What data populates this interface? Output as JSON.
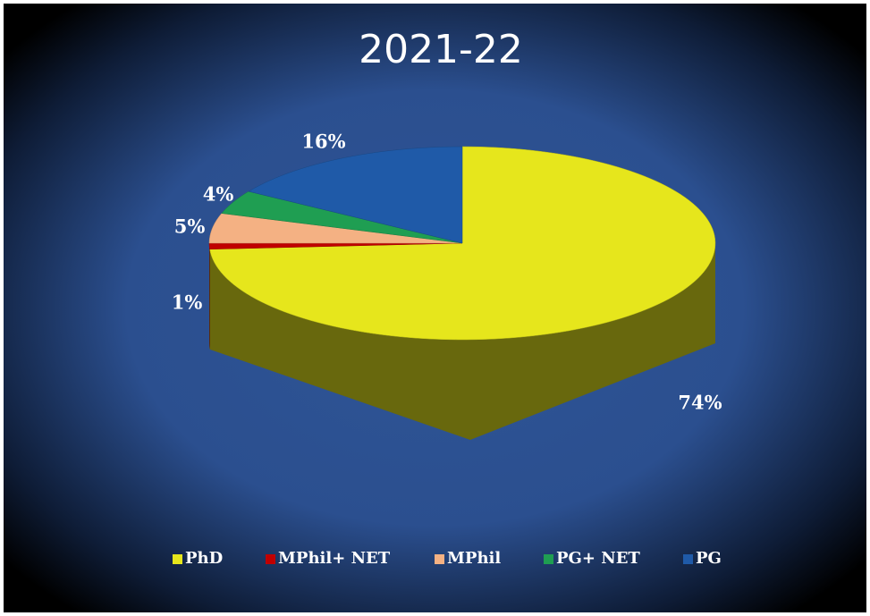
{
  "chart_data": {
    "type": "pie3d",
    "title": "2021-22",
    "categories": [
      "PhD",
      "MPhil+ NET",
      "MPhil",
      "PG+ NET",
      "PG"
    ],
    "values": [
      74,
      1,
      5,
      4,
      16
    ],
    "value_labels": [
      "74%",
      "1%",
      "5%",
      "4%",
      "16%"
    ],
    "colors": [
      "#e6e61c",
      "#c00000",
      "#f4b183",
      "#1f9e52",
      "#1f5aa8"
    ],
    "legend": "bottom"
  }
}
